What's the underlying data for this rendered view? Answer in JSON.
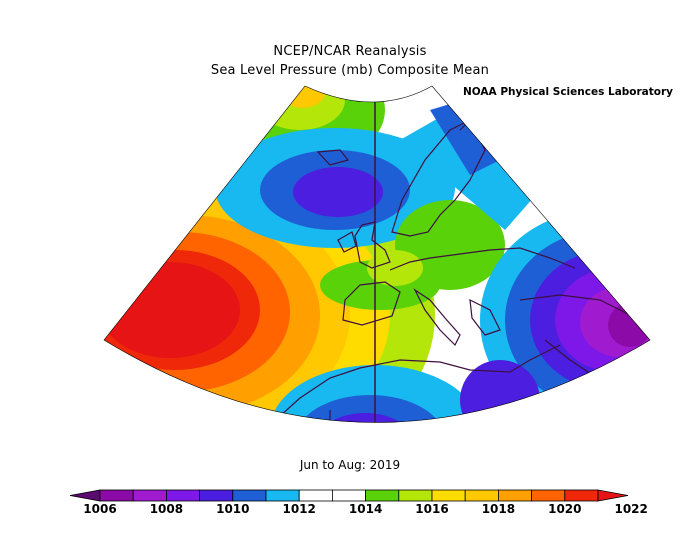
{
  "title_line1": "NCEP/NCAR Reanalysis",
  "title_line2": "Sea Level Pressure (mb) Composite Mean",
  "credit": "NOAA Physical Sciences Laboratory",
  "period": "Jun to Aug: 2019",
  "colorbar": {
    "colors": [
      "#5b0a70",
      "#8c0aa8",
      "#a01bd0",
      "#7d18e8",
      "#4b1ee0",
      "#1f5fd6",
      "#18b8f0",
      "#ffffff",
      "#ffffff",
      "#5ad20a",
      "#b4e60a",
      "#ffdc00",
      "#ffc800",
      "#ffa000",
      "#ff6400",
      "#f0280a",
      "#e61414"
    ],
    "tick_labels": [
      "1006",
      "1008",
      "1010",
      "1012",
      "1014",
      "1016",
      "1018",
      "1020",
      "1022"
    ]
  }
}
